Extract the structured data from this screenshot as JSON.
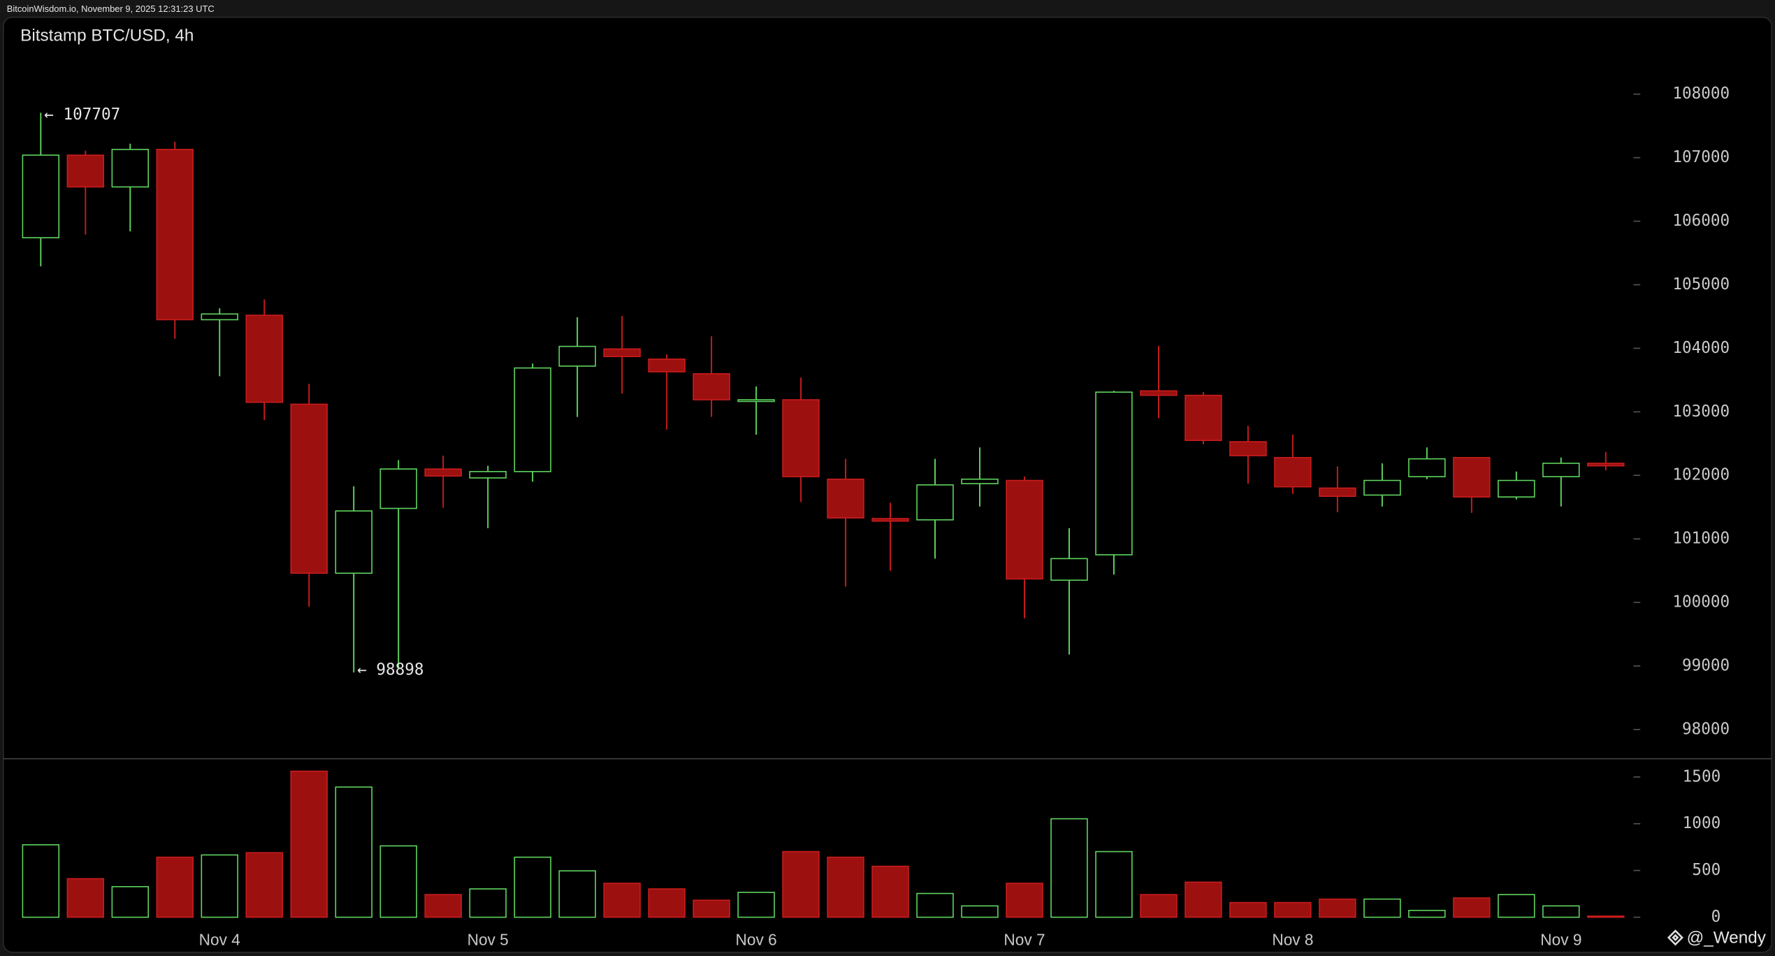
{
  "header": "BitcoinWisdom.io, November 9, 2025 12:31:23 UTC",
  "watermark": "@_Wendy",
  "chart_data": {
    "type": "candlestick",
    "title": "Bitstamp BTC/USD, 4h",
    "categories": [
      null,
      null,
      null,
      null,
      "Nov 4",
      null,
      null,
      null,
      null,
      null,
      "Nov 5",
      null,
      null,
      null,
      null,
      null,
      "Nov 6",
      null,
      null,
      null,
      null,
      null,
      "Nov 7",
      null,
      null,
      null,
      null,
      null,
      "Nov 8",
      null,
      null,
      null,
      null,
      null,
      "Nov 9",
      null
    ],
    "open": [
      105740,
      107040,
      106540,
      107130,
      104450,
      104520,
      103120,
      100460,
      101480,
      102100,
      101960,
      102060,
      103720,
      103990,
      103830,
      103600,
      103170,
      103190,
      101940,
      101320,
      101300,
      101870,
      101920,
      100350,
      100750,
      103330,
      103260,
      102530,
      102280,
      101800,
      101690,
      101980,
      102280,
      101660,
      101980,
      102190
    ],
    "high": [
      107707,
      107110,
      107220,
      107250,
      104630,
      104770,
      103440,
      101830,
      102240,
      102310,
      102150,
      103760,
      104490,
      104510,
      103900,
      104190,
      103400,
      103540,
      102260,
      101570,
      102260,
      102440,
      101980,
      101170,
      103330,
      104040,
      103310,
      102780,
      102640,
      102140,
      102190,
      102440,
      102280,
      102060,
      102280,
      102370
    ],
    "low": [
      105290,
      105790,
      105840,
      104150,
      103560,
      102870,
      99930,
      98898,
      98960,
      101490,
      101170,
      101900,
      102920,
      103290,
      102720,
      102920,
      102640,
      101580,
      100250,
      100500,
      100690,
      101510,
      99750,
      99180,
      100440,
      102900,
      102490,
      101870,
      101710,
      101420,
      101510,
      101940,
      101410,
      101620,
      101510,
      102080
    ],
    "close": [
      107040,
      106540,
      107130,
      104450,
      104540,
      103150,
      100460,
      101440,
      102100,
      101990,
      102060,
      103690,
      104030,
      103870,
      103630,
      103190,
      103190,
      101980,
      101330,
      101280,
      101850,
      101940,
      100370,
      100690,
      103310,
      103260,
      102550,
      102310,
      101820,
      101670,
      101920,
      102260,
      101660,
      101920,
      102190,
      102150
    ],
    "up_color": "#5ed35e",
    "down_color": "#9c1010",
    "ylim": [
      97540,
      109210
    ],
    "yticks": [
      98000,
      99000,
      100000,
      101000,
      102000,
      103000,
      104000,
      105000,
      106000,
      107000,
      108000
    ],
    "annotations": [
      {
        "label": "← 107707",
        "value": 107707
      },
      {
        "label": "← 98898",
        "value": 98898
      }
    ],
    "volume": [
      775,
      412,
      327,
      642,
      666,
      690,
      1562,
      1392,
      763,
      242,
      303,
      642,
      496,
      363,
      303,
      182,
      266,
      702,
      642,
      545,
      254,
      121,
      363,
      1053,
      702,
      242,
      375,
      157,
      157,
      194,
      194,
      73,
      206,
      242,
      121,
      12
    ],
    "volume_ylim": [
      0,
      1695
    ],
    "volume_yticks": [
      0,
      500,
      1000,
      1500
    ]
  }
}
